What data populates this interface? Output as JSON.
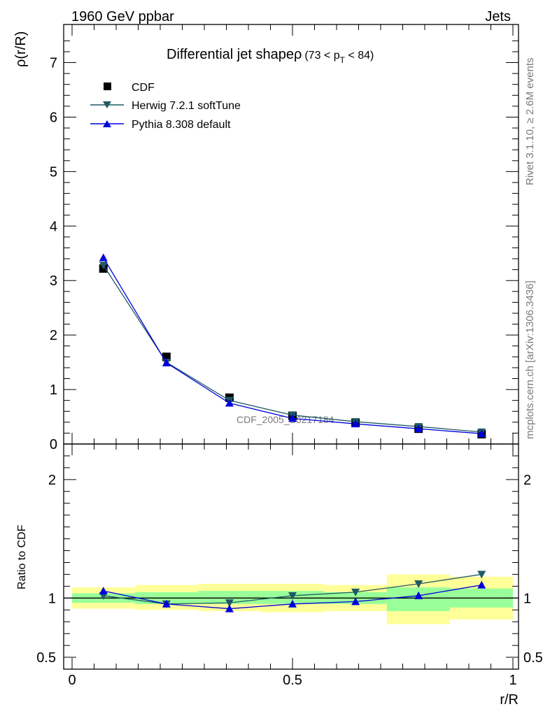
{
  "header": {
    "left": "1960 GeV ppbar",
    "right": "Jets"
  },
  "side_labels": {
    "rivet": "Rivet 3.1.10, ≥ 2.6M events",
    "mcplots": "mcplots.cern.ch [arXiv:1306.3436]"
  },
  "chart_data": [
    {
      "type": "line",
      "title": "Differential jet shapeρ",
      "title_suffix": "(73 < p",
      "title_sub": "T",
      "title_end": " < 84)",
      "xlabel": "",
      "ylabel": "ρ(r/R)",
      "watermark": "CDF_2005_S6217184",
      "xlim": [
        0,
        1
      ],
      "ylim": [
        0,
        7.7
      ],
      "yticks": [
        0,
        1,
        2,
        3,
        4,
        5,
        6,
        7
      ],
      "ytick_labels": [
        "0",
        "1",
        "2",
        "3",
        "4",
        "5",
        "6",
        "7"
      ],
      "x": [
        0.071,
        0.214,
        0.357,
        0.5,
        0.643,
        0.786,
        0.929
      ],
      "series": [
        {
          "name": "CDF",
          "values": [
            3.22,
            1.6,
            0.85,
            0.52,
            0.39,
            0.28,
            0.18
          ],
          "color": "#000000",
          "marker": "square"
        },
        {
          "name": "Herwig 7.2.1 softTune",
          "values": [
            3.28,
            1.5,
            0.8,
            0.53,
            0.41,
            0.32,
            0.22
          ],
          "color": "#1e5a64",
          "marker": "triangle-down"
        },
        {
          "name": "Pythia 8.308 default",
          "values": [
            3.42,
            1.49,
            0.75,
            0.47,
            0.37,
            0.28,
            0.19
          ],
          "color": "#0000dd",
          "marker": "triangle-up"
        }
      ],
      "legend": "top-left"
    },
    {
      "type": "line",
      "ylabel": "Ratio to CDF",
      "xlabel": "r/R",
      "xlim": [
        0,
        1
      ],
      "ylim": [
        0.4,
        2.3
      ],
      "xticks": [
        0,
        0.5,
        1
      ],
      "xtick_labels": [
        "0",
        "0.5",
        "1"
      ],
      "yticks": [
        0.5,
        1,
        2
      ],
      "ytick_labels": [
        "0.5",
        "1",
        "2"
      ],
      "bins": [
        [
          0,
          0.143
        ],
        [
          0.143,
          0.286
        ],
        [
          0.286,
          0.429
        ],
        [
          0.429,
          0.571
        ],
        [
          0.571,
          0.714
        ],
        [
          0.714,
          0.857
        ],
        [
          0.857,
          1.0
        ]
      ],
      "band_inner": [
        [
          0.96,
          1.04
        ],
        [
          0.95,
          1.05
        ],
        [
          0.95,
          1.06
        ],
        [
          0.95,
          1.06
        ],
        [
          0.95,
          1.05
        ],
        [
          0.89,
          1.09
        ],
        [
          0.92,
          1.08
        ]
      ],
      "band_outer": [
        [
          0.91,
          1.09
        ],
        [
          0.9,
          1.11
        ],
        [
          0.89,
          1.12
        ],
        [
          0.88,
          1.12
        ],
        [
          0.89,
          1.11
        ],
        [
          0.78,
          1.2
        ],
        [
          0.82,
          1.18
        ]
      ],
      "x": [
        0.071,
        0.214,
        0.357,
        0.5,
        0.643,
        0.786,
        0.929
      ],
      "series": [
        {
          "name": "Herwig 7.2.1 softTune",
          "values": [
            1.02,
            0.95,
            0.96,
            1.02,
            1.05,
            1.12,
            1.2
          ],
          "color": "#1e5a64",
          "marker": "triangle-down"
        },
        {
          "name": "Pythia 8.308 default",
          "values": [
            1.06,
            0.95,
            0.91,
            0.95,
            0.97,
            1.02,
            1.11
          ],
          "color": "#0000dd",
          "marker": "triangle-up"
        }
      ],
      "band_colors": {
        "inner": "#99ff99",
        "outer": "#ffff99"
      }
    }
  ]
}
